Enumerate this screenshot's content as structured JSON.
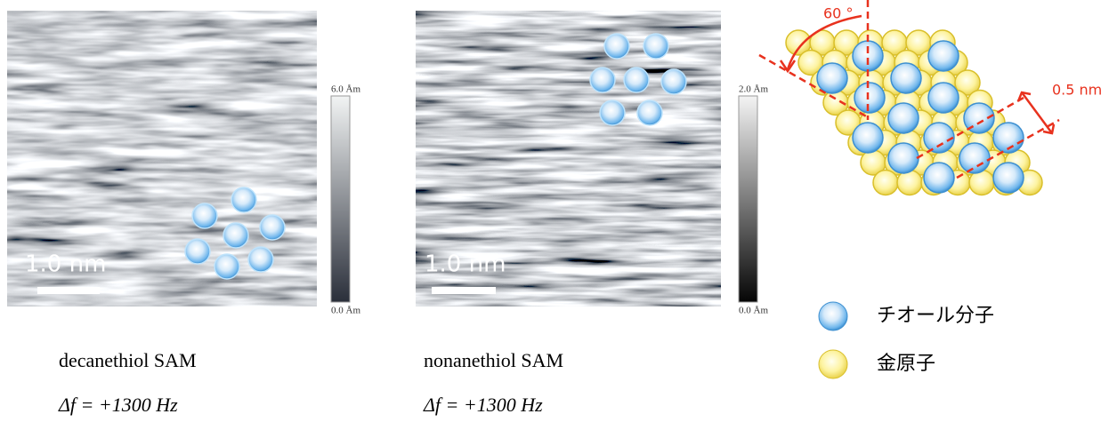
{
  "panels": [
    {
      "scale_bar": "1.0 nm",
      "colorbar": {
        "max": "6.0 Åm",
        "min": "0.0 Åm"
      },
      "caption": "decanethiol SAM",
      "condition": "Δf = +1300 Hz"
    },
    {
      "scale_bar": "1.0 nm",
      "colorbar": {
        "max": "2.0 Åm",
        "min": "0.0 Åm"
      },
      "caption": "nonanethiol SAM",
      "condition": "Δf = +1300 Hz"
    }
  ],
  "model": {
    "angle": "60 °",
    "spacing": "0.5 nm"
  },
  "legend": [
    {
      "label": "チオール分子"
    },
    {
      "label": "金原子"
    }
  ]
}
